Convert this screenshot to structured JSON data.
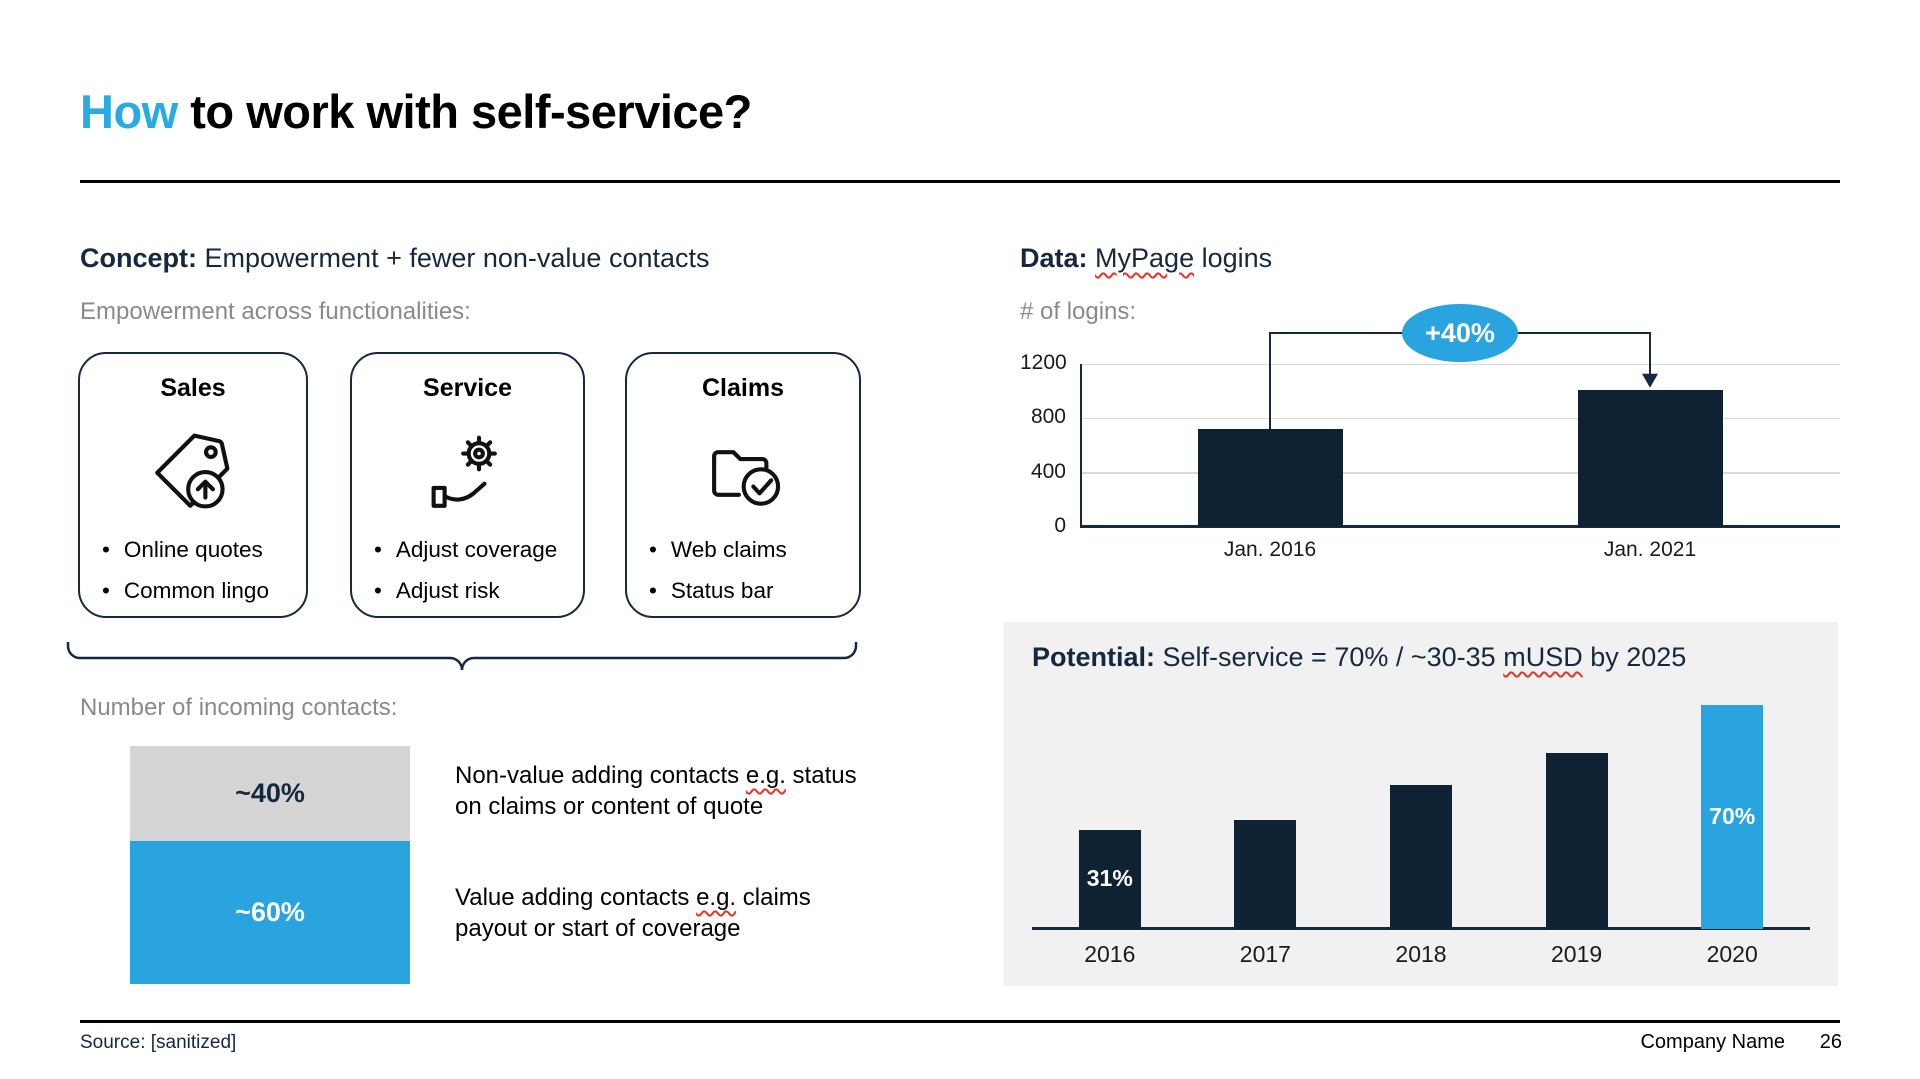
{
  "colors": {
    "accent_blue": "#29A4DE",
    "title_blue": "#29ABE2",
    "navy_text": "#15283E",
    "bar_navy": "#0E2234",
    "gray_text": "#8A8A8A",
    "gray_segment": "#D5D5D5",
    "panel_bg": "#F1F1F2",
    "gridline": "#DADADA",
    "spell_red": "#E5352B"
  },
  "title": {
    "segments": [
      {
        "t": "How",
        "c": "#29ABE2"
      },
      {
        "t": " to work with self-service?"
      }
    ]
  },
  "concept": {
    "heading_segments": [
      {
        "t": "Concept:",
        "b": true
      },
      {
        "t": " Empowerment + fewer non-value contacts"
      }
    ],
    "subheading": "Empowerment across functionalities:",
    "boxes": [
      {
        "title": "Sales",
        "icon": "price-tag-arrow-up-icon",
        "bullets": [
          "Online quotes",
          "Common lingo"
        ]
      },
      {
        "title": "Service",
        "icon": "hand-gear-icon",
        "bullets": [
          "Adjust coverage",
          "Adjust risk"
        ]
      },
      {
        "title": "Claims",
        "icon": "folder-check-icon",
        "bullets": [
          "Web claims",
          "Status bar"
        ]
      }
    ],
    "contacts_label": "Number of incoming contacts:",
    "stacked_bar": {
      "segments": [
        {
          "label": "~40%",
          "pct": 40,
          "color": "#D5D5D5",
          "text_color": "#15283E"
        },
        {
          "label": "~60%",
          "pct": 60,
          "color": "#29A4DE",
          "text_color": "#FFFFFF"
        }
      ]
    },
    "descriptions": [
      {
        "segments": [
          {
            "t": "Non-value adding contacts "
          },
          {
            "t": "e.g.",
            "sq": true
          },
          {
            "t": " status on claims or content of quote"
          }
        ]
      },
      {
        "segments": [
          {
            "t": "Value adding contacts "
          },
          {
            "t": "e.g.",
            "sq": true
          },
          {
            "t": " claims payout or start of coverage"
          }
        ]
      }
    ]
  },
  "data_section": {
    "heading_segments": [
      {
        "t": "Data:",
        "b": true
      },
      {
        "t": " "
      },
      {
        "t": "MyPage",
        "sq": true
      },
      {
        "t": " logins"
      }
    ],
    "ylabel": "# of logins:"
  },
  "potential_section": {
    "heading_segments": [
      {
        "t": "Potential:",
        "b": true
      },
      {
        "t": " Self-service = 70% / ~30-35 "
      },
      {
        "t": "mUSD",
        "sq": true
      },
      {
        "t": " by 2025"
      }
    ]
  },
  "chart_data": [
    {
      "id": "logins",
      "type": "bar",
      "title": "Data: MyPage logins",
      "ylabel": "# of logins:",
      "categories": [
        "Jan. 2016",
        "Jan. 2021"
      ],
      "values": [
        720,
        1010
      ],
      "yticks": [
        0,
        400,
        800,
        1200
      ],
      "ylim": [
        0,
        1200
      ],
      "grid": true,
      "legend": "none",
      "bar_color": "#0E2234",
      "annotation": {
        "text": "+40%",
        "from": "Jan. 2016",
        "to": "Jan. 2021",
        "color": "#29A4DE"
      }
    },
    {
      "id": "potential",
      "type": "bar",
      "title": "Potential: Self-service = 70% / ~30-35 mUSD by 2025",
      "categories": [
        "2016",
        "2017",
        "2018",
        "2019",
        "2020"
      ],
      "values": [
        31,
        34,
        45,
        55,
        70
      ],
      "unit": "percent",
      "ylim": [
        0,
        78
      ],
      "grid": false,
      "legend": "none",
      "bar_color": "#0E2234",
      "highlight_index": 4,
      "highlight_color": "#29A4DE",
      "bar_labels": [
        {
          "index": 0,
          "text": "31%"
        },
        {
          "index": 4,
          "text": "70%"
        }
      ]
    }
  ],
  "footer": {
    "source": "Source: [sanitized]",
    "company": "Company Name",
    "page": "26"
  }
}
